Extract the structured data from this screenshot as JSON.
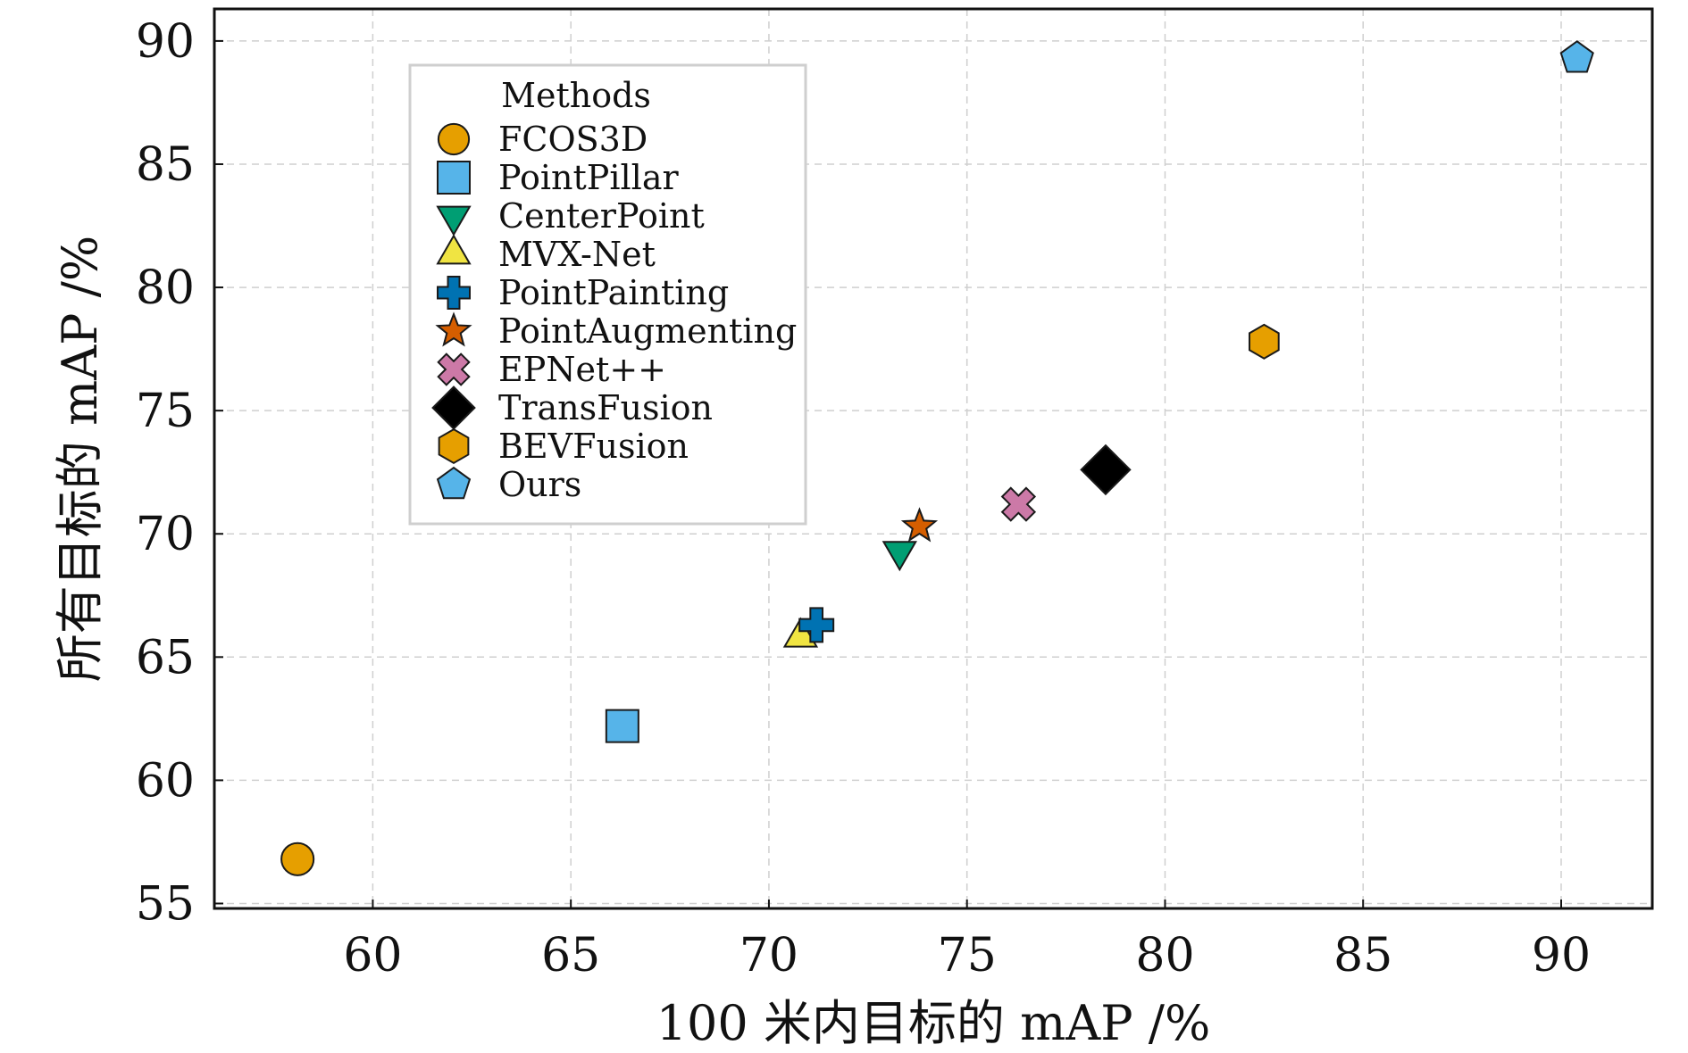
{
  "chart_data": {
    "type": "scatter",
    "xlabel": "100 米内目标的 mAP /%",
    "ylabel": "所有目标的 mAP /%",
    "xlim": [
      56,
      92.3
    ],
    "ylim": [
      54.8,
      91.3
    ],
    "xticks": [
      60,
      65,
      70,
      75,
      80,
      85,
      90
    ],
    "yticks": [
      55,
      60,
      65,
      70,
      75,
      80,
      85,
      90
    ],
    "grid": true,
    "legend": {
      "title": "Methods",
      "position": "top-left"
    },
    "series": [
      {
        "name": "FCOS3D",
        "marker": "circle",
        "color": "#E69F00",
        "x": 58.1,
        "y": 56.8
      },
      {
        "name": "PointPillar",
        "marker": "square",
        "color": "#56B4E9",
        "x": 66.3,
        "y": 62.2
      },
      {
        "name": "CenterPoint",
        "marker": "triangle-down",
        "color": "#009E73",
        "x": 73.3,
        "y": 69.3
      },
      {
        "name": "MVX-Net",
        "marker": "triangle-up",
        "color": "#F0E442",
        "x": 70.8,
        "y": 65.8
      },
      {
        "name": "PointPainting",
        "marker": "plus",
        "color": "#0072B2",
        "x": 71.2,
        "y": 66.3
      },
      {
        "name": "PointAugmenting",
        "marker": "star",
        "color": "#D55E00",
        "x": 73.8,
        "y": 70.3
      },
      {
        "name": "EPNet++",
        "marker": "x",
        "color": "#CC79A7",
        "x": 76.3,
        "y": 71.2
      },
      {
        "name": "TransFusion",
        "marker": "diamond",
        "color": "#000000",
        "x": 78.5,
        "y": 72.6
      },
      {
        "name": "BEVFusion",
        "marker": "hexagon",
        "color": "#E69F00",
        "x": 82.5,
        "y": 77.8
      },
      {
        "name": "Ours",
        "marker": "pentagon",
        "color": "#56B4E9",
        "x": 90.4,
        "y": 89.3
      }
    ]
  }
}
